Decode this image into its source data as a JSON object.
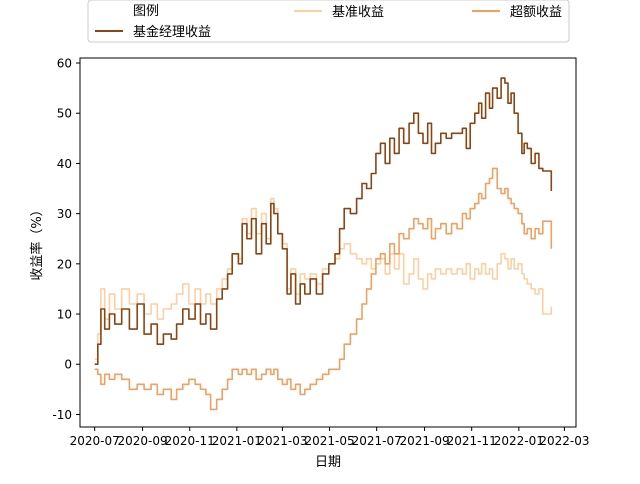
{
  "chart_data": {
    "type": "line",
    "xlabel": "日期",
    "ylabel": "收益率（%）",
    "xlim": [
      "2020-06-12",
      "2022-03-16"
    ],
    "ylim": [
      -12.5,
      61
    ],
    "x_ticks": [
      "2020-07",
      "2020-09",
      "2020-11",
      "2021-01",
      "2021-03",
      "2021-05",
      "2021-07",
      "2021-09",
      "2021-11",
      "2022-01",
      "2022-03"
    ],
    "y_ticks": [
      -10,
      0,
      10,
      20,
      30,
      40,
      50,
      60
    ],
    "legend": {
      "title": "图例",
      "placement": "top",
      "columns": 3
    },
    "series": [
      {
        "name": "基金经理收益",
        "color": "#8b4513",
        "points": [
          [
            "2020-07-01",
            0
          ],
          [
            "2020-07-05",
            4
          ],
          [
            "2020-07-09",
            11
          ],
          [
            "2020-07-14",
            7
          ],
          [
            "2020-07-20",
            10
          ],
          [
            "2020-07-27",
            8
          ],
          [
            "2020-08-05",
            11
          ],
          [
            "2020-08-15",
            7
          ],
          [
            "2020-08-25",
            12
          ],
          [
            "2020-09-03",
            6
          ],
          [
            "2020-09-12",
            8
          ],
          [
            "2020-09-20",
            4
          ],
          [
            "2020-09-28",
            6
          ],
          [
            "2020-10-08",
            5
          ],
          [
            "2020-10-15",
            8
          ],
          [
            "2020-10-23",
            11
          ],
          [
            "2020-10-31",
            9
          ],
          [
            "2020-11-08",
            12
          ],
          [
            "2020-11-15",
            8
          ],
          [
            "2020-11-22",
            10
          ],
          [
            "2020-11-28",
            7
          ],
          [
            "2020-12-06",
            13
          ],
          [
            "2020-12-13",
            15
          ],
          [
            "2020-12-20",
            18
          ],
          [
            "2020-12-26",
            22
          ],
          [
            "2021-01-03",
            20
          ],
          [
            "2021-01-08",
            28
          ],
          [
            "2021-01-14",
            25
          ],
          [
            "2021-01-20",
            29
          ],
          [
            "2021-01-26",
            22
          ],
          [
            "2021-02-02",
            28
          ],
          [
            "2021-02-08",
            24
          ],
          [
            "2021-02-14",
            32
          ],
          [
            "2021-02-18",
            30
          ],
          [
            "2021-02-23",
            26
          ],
          [
            "2021-03-01",
            23
          ],
          [
            "2021-03-07",
            14
          ],
          [
            "2021-03-12",
            18
          ],
          [
            "2021-03-18",
            12
          ],
          [
            "2021-03-24",
            16
          ],
          [
            "2021-03-30",
            14
          ],
          [
            "2021-04-06",
            17
          ],
          [
            "2021-04-14",
            14
          ],
          [
            "2021-04-22",
            18
          ],
          [
            "2021-04-30",
            20
          ],
          [
            "2021-05-08",
            22
          ],
          [
            "2021-05-14",
            27
          ],
          [
            "2021-05-20",
            31
          ],
          [
            "2021-05-28",
            30
          ],
          [
            "2021-06-05",
            33
          ],
          [
            "2021-06-12",
            36
          ],
          [
            "2021-06-18",
            35
          ],
          [
            "2021-06-24",
            38
          ],
          [
            "2021-06-30",
            42
          ],
          [
            "2021-07-06",
            44
          ],
          [
            "2021-07-12",
            40
          ],
          [
            "2021-07-18",
            45
          ],
          [
            "2021-07-24",
            42
          ],
          [
            "2021-07-30",
            47
          ],
          [
            "2021-08-05",
            44
          ],
          [
            "2021-08-12",
            48
          ],
          [
            "2021-08-18",
            50
          ],
          [
            "2021-08-24",
            46
          ],
          [
            "2021-08-30",
            44
          ],
          [
            "2021-09-05",
            48
          ],
          [
            "2021-09-10",
            42
          ],
          [
            "2021-09-15",
            44
          ],
          [
            "2021-09-22",
            46
          ],
          [
            "2021-09-29",
            45
          ],
          [
            "2021-10-06",
            46
          ],
          [
            "2021-10-13",
            46
          ],
          [
            "2021-10-20",
            47
          ],
          [
            "2021-10-25",
            43
          ],
          [
            "2021-10-30",
            48
          ],
          [
            "2021-11-05",
            50
          ],
          [
            "2021-11-10",
            52
          ],
          [
            "2021-11-14",
            49
          ],
          [
            "2021-11-19",
            54
          ],
          [
            "2021-11-24",
            51
          ],
          [
            "2021-11-28",
            55
          ],
          [
            "2021-12-04",
            53
          ],
          [
            "2021-12-09",
            57
          ],
          [
            "2021-12-14",
            56
          ],
          [
            "2021-12-18",
            52
          ],
          [
            "2021-12-22",
            54
          ],
          [
            "2021-12-26",
            50
          ],
          [
            "2021-12-31",
            46
          ],
          [
            "2022-01-05",
            42
          ],
          [
            "2022-01-08",
            44
          ],
          [
            "2022-01-12",
            43
          ],
          [
            "2022-01-17",
            40
          ],
          [
            "2022-01-22",
            42
          ],
          [
            "2022-01-27",
            39
          ],
          [
            "2022-02-01",
            38.5
          ],
          [
            "2022-02-08",
            38.5
          ],
          [
            "2022-02-12",
            34.5
          ]
        ]
      },
      {
        "name": "基准收益",
        "color": "#fdd0a2",
        "points": [
          [
            "2020-07-01",
            1
          ],
          [
            "2020-07-05",
            6
          ],
          [
            "2020-07-09",
            15
          ],
          [
            "2020-07-14",
            9
          ],
          [
            "2020-07-20",
            14
          ],
          [
            "2020-07-27",
            11
          ],
          [
            "2020-08-05",
            15
          ],
          [
            "2020-08-15",
            12
          ],
          [
            "2020-08-25",
            14
          ],
          [
            "2020-09-03",
            10
          ],
          [
            "2020-09-12",
            12
          ],
          [
            "2020-09-20",
            9
          ],
          [
            "2020-09-28",
            11
          ],
          [
            "2020-10-08",
            12
          ],
          [
            "2020-10-15",
            14
          ],
          [
            "2020-10-23",
            16
          ],
          [
            "2020-10-31",
            12
          ],
          [
            "2020-11-08",
            15
          ],
          [
            "2020-11-15",
            12
          ],
          [
            "2020-11-22",
            14
          ],
          [
            "2020-11-28",
            12
          ],
          [
            "2020-12-06",
            15
          ],
          [
            "2020-12-13",
            17
          ],
          [
            "2020-12-20",
            19
          ],
          [
            "2020-12-26",
            22
          ],
          [
            "2021-01-03",
            21
          ],
          [
            "2021-01-08",
            29
          ],
          [
            "2021-01-14",
            26
          ],
          [
            "2021-01-20",
            31
          ],
          [
            "2021-01-26",
            26
          ],
          [
            "2021-02-02",
            30
          ],
          [
            "2021-02-08",
            25
          ],
          [
            "2021-02-14",
            33
          ],
          [
            "2021-02-18",
            31
          ],
          [
            "2021-02-23",
            26
          ],
          [
            "2021-03-01",
            24
          ],
          [
            "2021-03-07",
            15
          ],
          [
            "2021-03-12",
            19
          ],
          [
            "2021-03-18",
            14
          ],
          [
            "2021-03-24",
            18
          ],
          [
            "2021-03-30",
            17
          ],
          [
            "2021-04-06",
            18
          ],
          [
            "2021-04-14",
            16
          ],
          [
            "2021-04-22",
            19
          ],
          [
            "2021-04-30",
            20
          ],
          [
            "2021-05-08",
            21
          ],
          [
            "2021-05-14",
            23
          ],
          [
            "2021-05-20",
            24
          ],
          [
            "2021-05-28",
            22
          ],
          [
            "2021-06-05",
            21
          ],
          [
            "2021-06-12",
            20
          ],
          [
            "2021-06-18",
            21
          ],
          [
            "2021-06-24",
            19
          ],
          [
            "2021-06-30",
            20
          ],
          [
            "2021-07-06",
            21
          ],
          [
            "2021-07-12",
            18
          ],
          [
            "2021-07-18",
            22
          ],
          [
            "2021-07-24",
            19
          ],
          [
            "2021-07-30",
            22
          ],
          [
            "2021-08-05",
            16
          ],
          [
            "2021-08-12",
            18
          ],
          [
            "2021-08-18",
            21
          ],
          [
            "2021-08-24",
            17
          ],
          [
            "2021-08-30",
            15
          ],
          [
            "2021-09-05",
            18
          ],
          [
            "2021-09-10",
            17
          ],
          [
            "2021-09-15",
            19
          ],
          [
            "2021-09-22",
            18
          ],
          [
            "2021-09-29",
            19
          ],
          [
            "2021-10-06",
            18
          ],
          [
            "2021-10-13",
            19
          ],
          [
            "2021-10-20",
            18
          ],
          [
            "2021-10-25",
            20
          ],
          [
            "2021-10-30",
            17
          ],
          [
            "2021-11-05",
            19
          ],
          [
            "2021-11-10",
            18
          ],
          [
            "2021-11-14",
            20
          ],
          [
            "2021-11-19",
            18
          ],
          [
            "2021-11-24",
            19
          ],
          [
            "2021-11-28",
            17
          ],
          [
            "2021-12-04",
            20
          ],
          [
            "2021-12-09",
            22
          ],
          [
            "2021-12-14",
            21
          ],
          [
            "2021-12-18",
            19
          ],
          [
            "2021-12-22",
            21
          ],
          [
            "2021-12-26",
            19
          ],
          [
            "2021-12-31",
            20
          ],
          [
            "2022-01-05",
            18
          ],
          [
            "2022-01-08",
            17
          ],
          [
            "2022-01-12",
            16
          ],
          [
            "2022-01-17",
            15
          ],
          [
            "2022-01-22",
            14
          ],
          [
            "2022-01-27",
            15
          ],
          [
            "2022-02-01",
            10
          ],
          [
            "2022-02-08",
            10
          ],
          [
            "2022-02-12",
            11.5
          ]
        ]
      },
      {
        "name": "超额收益",
        "color": "#f0a060",
        "points": [
          [
            "2020-07-01",
            -1
          ],
          [
            "2020-07-05",
            -2
          ],
          [
            "2020-07-09",
            -4
          ],
          [
            "2020-07-14",
            -2
          ],
          [
            "2020-07-20",
            -3
          ],
          [
            "2020-07-27",
            -2
          ],
          [
            "2020-08-05",
            -3
          ],
          [
            "2020-08-15",
            -5
          ],
          [
            "2020-08-25",
            -4
          ],
          [
            "2020-09-03",
            -5
          ],
          [
            "2020-09-12",
            -4
          ],
          [
            "2020-09-20",
            -6
          ],
          [
            "2020-09-28",
            -5
          ],
          [
            "2020-10-08",
            -7
          ],
          [
            "2020-10-15",
            -5
          ],
          [
            "2020-10-23",
            -4
          ],
          [
            "2020-10-31",
            -3
          ],
          [
            "2020-11-08",
            -4
          ],
          [
            "2020-11-15",
            -5
          ],
          [
            "2020-11-22",
            -6
          ],
          [
            "2020-11-28",
            -9
          ],
          [
            "2020-12-06",
            -7
          ],
          [
            "2020-12-13",
            -5
          ],
          [
            "2020-12-20",
            -3
          ],
          [
            "2020-12-26",
            -1
          ],
          [
            "2021-01-03",
            -2
          ],
          [
            "2021-01-08",
            -1
          ],
          [
            "2021-01-14",
            -2
          ],
          [
            "2021-01-20",
            -1
          ],
          [
            "2021-01-26",
            -3
          ],
          [
            "2021-02-02",
            -2
          ],
          [
            "2021-02-08",
            -1
          ],
          [
            "2021-02-14",
            -2
          ],
          [
            "2021-02-18",
            -1
          ],
          [
            "2021-02-23",
            -3
          ],
          [
            "2021-03-01",
            -4
          ],
          [
            "2021-03-07",
            -3
          ],
          [
            "2021-03-12",
            -5
          ],
          [
            "2021-03-18",
            -4
          ],
          [
            "2021-03-24",
            -6
          ],
          [
            "2021-03-30",
            -5
          ],
          [
            "2021-04-06",
            -4
          ],
          [
            "2021-04-14",
            -3
          ],
          [
            "2021-04-22",
            -2
          ],
          [
            "2021-04-30",
            -1
          ],
          [
            "2021-05-08",
            -1
          ],
          [
            "2021-05-14",
            1
          ],
          [
            "2021-05-20",
            4
          ],
          [
            "2021-05-28",
            6
          ],
          [
            "2021-06-05",
            9
          ],
          [
            "2021-06-12",
            12
          ],
          [
            "2021-06-18",
            15
          ],
          [
            "2021-06-24",
            18
          ],
          [
            "2021-06-30",
            21
          ],
          [
            "2021-07-06",
            22
          ],
          [
            "2021-07-12",
            20
          ],
          [
            "2021-07-18",
            24
          ],
          [
            "2021-07-24",
            22
          ],
          [
            "2021-07-30",
            26
          ],
          [
            "2021-08-05",
            25
          ],
          [
            "2021-08-12",
            27
          ],
          [
            "2021-08-18",
            29
          ],
          [
            "2021-08-24",
            28
          ],
          [
            "2021-08-30",
            27
          ],
          [
            "2021-09-05",
            29
          ],
          [
            "2021-09-10",
            25
          ],
          [
            "2021-09-15",
            27
          ],
          [
            "2021-09-22",
            28
          ],
          [
            "2021-09-29",
            26
          ],
          [
            "2021-10-06",
            28
          ],
          [
            "2021-10-13",
            27
          ],
          [
            "2021-10-20",
            30
          ],
          [
            "2021-10-25",
            29
          ],
          [
            "2021-10-30",
            31
          ],
          [
            "2021-11-05",
            32
          ],
          [
            "2021-11-10",
            34
          ],
          [
            "2021-11-14",
            33
          ],
          [
            "2021-11-19",
            36
          ],
          [
            "2021-11-24",
            37
          ],
          [
            "2021-11-28",
            39
          ],
          [
            "2021-12-04",
            35
          ],
          [
            "2021-12-09",
            34
          ],
          [
            "2021-12-14",
            35
          ],
          [
            "2021-12-18",
            33
          ],
          [
            "2021-12-22",
            32
          ],
          [
            "2021-12-26",
            31
          ],
          [
            "2021-12-31",
            30
          ],
          [
            "2022-01-05",
            28
          ],
          [
            "2022-01-08",
            26
          ],
          [
            "2022-01-12",
            27
          ],
          [
            "2022-01-17",
            25
          ],
          [
            "2022-01-22",
            27
          ],
          [
            "2022-01-27",
            26
          ],
          [
            "2022-02-01",
            28.5
          ],
          [
            "2022-02-08",
            28.5
          ],
          [
            "2022-02-12",
            23
          ]
        ]
      }
    ]
  }
}
